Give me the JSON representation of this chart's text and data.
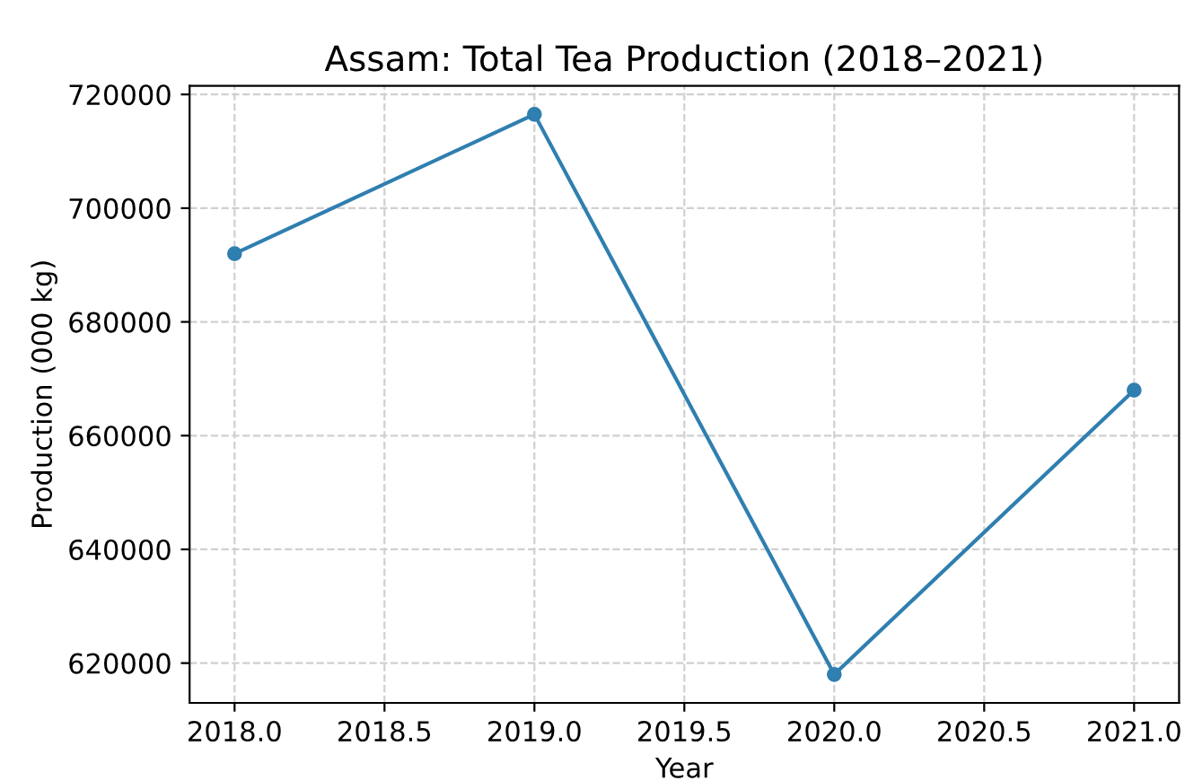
{
  "chart_data": {
    "type": "line",
    "title": "Assam: Total Tea Production (2018–2021)",
    "xlabel": "Year",
    "ylabel": "Production (000 kg)",
    "x": [
      2018,
      2019,
      2020,
      2021
    ],
    "series": [
      {
        "color": "#2f7fb0",
        "values": [
          692000,
          716500,
          618000,
          668000
        ]
      }
    ],
    "xlim": [
      2017.85,
      2021.15
    ],
    "xticks": [
      {
        "value": 2018,
        "label": "2018.0"
      },
      {
        "value": 2018.5,
        "label": "2018.5"
      },
      {
        "value": 2019,
        "label": "2019.0"
      },
      {
        "value": 2019.5,
        "label": "2019.5"
      },
      {
        "value": 2020,
        "label": "2020.0"
      },
      {
        "value": 2020.5,
        "label": "2020.5"
      },
      {
        "value": 2021,
        "label": "2021.0"
      }
    ],
    "ylim": [
      613000,
      721500
    ],
    "yticks": [
      620000,
      640000,
      660000,
      680000,
      700000,
      720000
    ],
    "grid": true,
    "marker": "circle",
    "line_style": "solid"
  }
}
